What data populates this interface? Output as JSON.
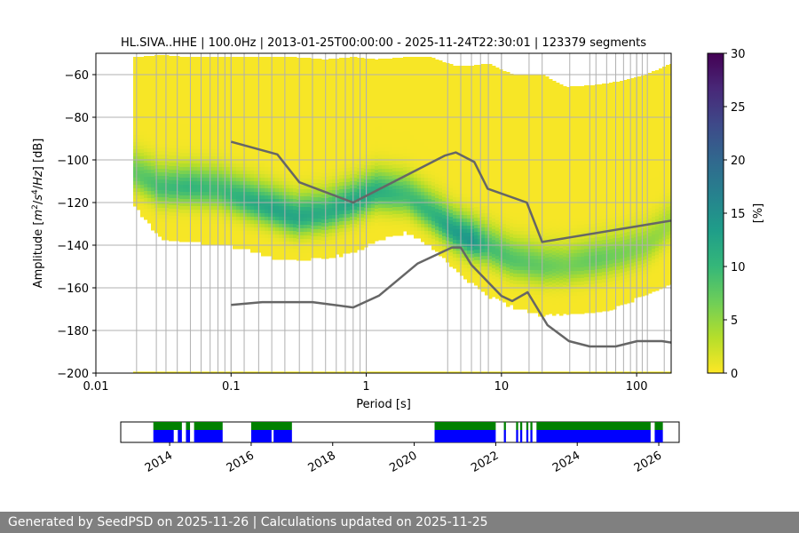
{
  "chart_data": [
    {
      "type": "heatmap",
      "title": "HL.SIVA..HHE | 100.0Hz | 2013-01-25T00:00:00 - 2025-11-24T22:30:01 | 123379 segments",
      "xlabel": "Period [s]",
      "ylabel_parts": [
        "Amplitude [",
        "m",
        "2",
        "/",
        "s",
        "4",
        "/",
        "Hz",
        "] [dB]"
      ],
      "x_scale": "log",
      "xlim": [
        0.01,
        180
      ],
      "ylim": [
        -200,
        -50
      ],
      "x_ticks": [
        {
          "value": 0.01,
          "label": "0.01"
        },
        {
          "value": 0.1,
          "label": "0.1"
        },
        {
          "value": 1,
          "label": "1"
        },
        {
          "value": 10,
          "label": "10"
        },
        {
          "value": 100,
          "label": "100"
        }
      ],
      "y_ticks": [
        {
          "value": -60,
          "label": "−60"
        },
        {
          "value": -80,
          "label": "−80"
        },
        {
          "value": -100,
          "label": "−100"
        },
        {
          "value": -120,
          "label": "−120"
        },
        {
          "value": -140,
          "label": "−140"
        },
        {
          "value": -160,
          "label": "−160"
        },
        {
          "value": -180,
          "label": "−180"
        },
        {
          "value": -200,
          "label": "−200"
        }
      ],
      "grid": true,
      "colorbar": {
        "label": "[%]",
        "min": 0,
        "max": 30,
        "ticks": [
          {
            "value": 0,
            "label": "0"
          },
          {
            "value": 5,
            "label": "5"
          },
          {
            "value": 10,
            "label": "10"
          },
          {
            "value": 15,
            "label": "15"
          },
          {
            "value": 20,
            "label": "20"
          },
          {
            "value": 25,
            "label": "25"
          },
          {
            "value": 30,
            "label": "30"
          }
        ],
        "colors": [
          "#fde725",
          "#b5de2b",
          "#6ece58",
          "#35b779",
          "#1f9e89",
          "#26828e",
          "#31688e",
          "#3e4989",
          "#482878",
          "#440154"
        ]
      },
      "distribution": {
        "period": [
          0.019,
          0.03,
          0.05,
          0.08,
          0.13,
          0.2,
          0.3,
          0.5,
          0.8,
          1.2,
          2,
          3,
          4.5,
          6,
          8,
          12,
          20,
          30,
          50,
          80,
          120,
          180
        ],
        "upper_edge": [
          -52,
          -51,
          -52,
          -52,
          -52,
          -52,
          -52,
          -53,
          -52,
          -53,
          -52,
          -52,
          -56,
          -56,
          -55,
          -60,
          -60,
          -66,
          -65,
          -63,
          -60,
          -55
        ],
        "lower_edge": [
          -120,
          -136,
          -138,
          -139,
          -141,
          -145,
          -146,
          -145,
          -143,
          -137,
          -133,
          -140,
          -150,
          -157,
          -163,
          -168,
          -172,
          -172,
          -171,
          -167,
          -162,
          -157
        ],
        "mode": [
          -106,
          -113,
          -113,
          -114,
          -119,
          -123,
          -127,
          -125,
          -120,
          -115,
          -117,
          -125,
          -134,
          -138,
          -141,
          -147,
          -150,
          -150,
          -147,
          -144,
          -140,
          -130
        ],
        "mode_peak_percent": [
          7,
          9,
          10,
          9,
          11,
          12,
          12,
          11,
          12,
          11,
          9,
          10,
          13,
          14,
          9,
          8,
          7,
          6,
          7,
          6,
          5,
          4
        ]
      },
      "series": [
        {
          "name": "high noise model",
          "color": "#666666",
          "points": [
            [
              0.1,
              -91.5
            ],
            [
              0.22,
              -97.4
            ],
            [
              0.32,
              -110.5
            ],
            [
              0.8,
              -120
            ],
            [
              3.8,
              -98
            ],
            [
              4.6,
              -96.5
            ],
            [
              6.3,
              -101
            ],
            [
              7.9,
              -113.5
            ],
            [
              15.4,
              -120
            ],
            [
              20,
              -138.5
            ],
            [
              180,
              -128.5
            ]
          ]
        },
        {
          "name": "low noise model",
          "color": "#666666",
          "points": [
            [
              0.1,
              -168
            ],
            [
              0.17,
              -166.7
            ],
            [
              0.4,
              -166.7
            ],
            [
              0.8,
              -169.2
            ],
            [
              1.24,
              -163.7
            ],
            [
              2.4,
              -148.6
            ],
            [
              4.3,
              -141.1
            ],
            [
              5.0,
              -141.1
            ],
            [
              6.0,
              -149.3
            ],
            [
              10,
              -163.8
            ],
            [
              12,
              -166.2
            ],
            [
              15.6,
              -162.1
            ],
            [
              21.9,
              -177.5
            ],
            [
              31.6,
              -185
            ],
            [
              45,
              -187.5
            ],
            [
              70,
              -187.5
            ],
            [
              101,
              -185
            ],
            [
              154,
              -185
            ],
            [
              180,
              -185.7
            ]
          ]
        }
      ],
      "vertical_lines_period": [
        0.02,
        0.028,
        0.033,
        0.04,
        0.05,
        0.06,
        0.07,
        0.08,
        0.09,
        0.1,
        0.125,
        0.16,
        0.2,
        0.25,
        0.32,
        0.4,
        0.5,
        0.6,
        0.7,
        0.8,
        0.9,
        1.0,
        4,
        5,
        6,
        7,
        8,
        10,
        16,
        20,
        32,
        45,
        50,
        60,
        70,
        80,
        90,
        100,
        110,
        120,
        160
      ]
    },
    {
      "type": "timeline",
      "x_ticks": [
        {
          "value": 2014,
          "label": "2014"
        },
        {
          "value": 2016,
          "label": "2016"
        },
        {
          "value": 2018,
          "label": "2018"
        },
        {
          "value": 2020,
          "label": "2020"
        },
        {
          "value": 2022,
          "label": "2022"
        },
        {
          "value": 2024,
          "label": "2024"
        },
        {
          "value": 2026,
          "label": "2026"
        }
      ],
      "xlim": [
        2012.8,
        2026.5
      ],
      "series": [
        {
          "name": "data availability (upper)",
          "color": "#008000",
          "spans": [
            [
              2013.6,
              2014.3
            ],
            [
              2014.4,
              2014.5
            ],
            [
              2014.6,
              2015.3
            ],
            [
              2016.0,
              2017.0
            ],
            [
              2020.5,
              2022.0
            ],
            [
              2022.2,
              2022.25
            ],
            [
              2022.5,
              2022.55
            ],
            [
              2022.6,
              2022.65
            ],
            [
              2022.75,
              2022.8
            ],
            [
              2022.85,
              2022.9
            ],
            [
              2023.0,
              2025.8
            ],
            [
              2025.9,
              2026.1
            ]
          ]
        },
        {
          "name": "data availability (lower)",
          "color": "#0000ff",
          "spans": [
            [
              2013.6,
              2014.1
            ],
            [
              2014.2,
              2014.3
            ],
            [
              2014.4,
              2014.5
            ],
            [
              2014.6,
              2015.3
            ],
            [
              2016.0,
              2016.5
            ],
            [
              2016.55,
              2017.0
            ],
            [
              2020.5,
              2022.0
            ],
            [
              2022.2,
              2022.25
            ],
            [
              2022.5,
              2022.55
            ],
            [
              2022.6,
              2022.65
            ],
            [
              2022.75,
              2022.8
            ],
            [
              2022.85,
              2022.9
            ],
            [
              2023.0,
              2025.8
            ],
            [
              2025.9,
              2026.1
            ]
          ]
        }
      ]
    }
  ],
  "footer": {
    "text": "Generated by SeedPSD on 2025-11-26 | Calculations updated on 2025-11-25"
  }
}
